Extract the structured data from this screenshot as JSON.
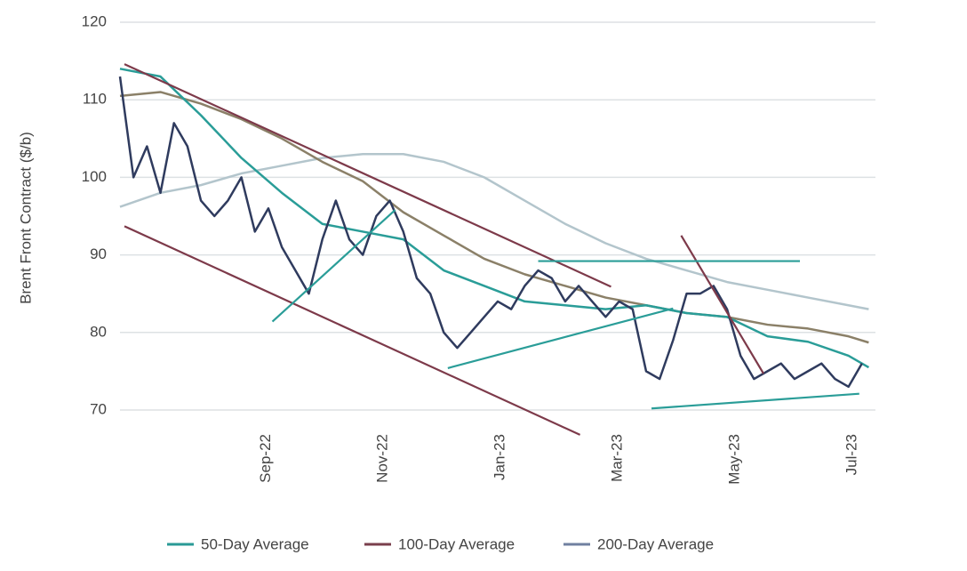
{
  "chart_data": {
    "type": "line",
    "y_label": "Brent Front Contract ($/b)",
    "ylim": [
      66.5,
      120
    ],
    "yticks": [
      70,
      80,
      90,
      100,
      110,
      120
    ],
    "xlim": [
      0,
      56
    ],
    "xticks": [
      {
        "value": 10.83,
        "label": "Sep-22"
      },
      {
        "value": 19.5,
        "label": "Nov-22"
      },
      {
        "value": 28.2,
        "label": "Jan-23"
      },
      {
        "value": 36.9,
        "label": "Mar-23"
      },
      {
        "value": 45.6,
        "label": "May-23"
      },
      {
        "value": 54.3,
        "label": "Jul-23"
      }
    ],
    "grid": true,
    "price": {
      "color": "#2f3b5e",
      "x": [
        0,
        1,
        2,
        3,
        4,
        5,
        6,
        7,
        8,
        9,
        10,
        11,
        12,
        13,
        14,
        15,
        16,
        17,
        18,
        19,
        20,
        21,
        22,
        23,
        24,
        25,
        26,
        27,
        28,
        29,
        30,
        31,
        32,
        33,
        34,
        35,
        36,
        37,
        38,
        39,
        40,
        41,
        42,
        43,
        44,
        45,
        46,
        47,
        48,
        49,
        50,
        51,
        52,
        53,
        54,
        55
      ],
      "values": [
        113,
        100,
        104,
        98,
        107,
        104,
        97,
        95,
        97,
        100,
        93,
        96,
        91,
        88,
        85,
        92,
        97,
        92,
        90,
        95,
        97,
        93,
        87,
        85,
        80,
        78,
        80,
        82,
        84,
        83,
        86,
        88,
        87,
        84,
        86,
        84,
        82,
        84,
        83,
        75,
        74,
        79,
        85,
        85,
        86,
        83,
        77,
        74,
        75,
        76,
        74,
        75,
        76,
        74,
        73,
        76
      ]
    },
    "series": [
      {
        "color": "#2a9d98",
        "x": [
          0,
          3,
          6,
          9,
          12,
          15,
          18,
          21,
          24,
          27,
          30,
          33,
          36,
          39,
          42,
          45,
          48,
          51,
          54,
          55.5
        ],
        "values": [
          114,
          113,
          108,
          102.5,
          98,
          94,
          93,
          92,
          88,
          86,
          84,
          83.5,
          83,
          83.5,
          82.5,
          82,
          79.5,
          78.8,
          77,
          75.5
        ]
      },
      {
        "color": "#8b8068",
        "x": [
          0,
          3,
          6,
          9,
          12,
          15,
          18,
          21,
          24,
          27,
          30,
          33,
          36,
          39,
          42,
          45,
          48,
          51,
          54,
          55.5
        ],
        "values": [
          110.5,
          111,
          109.5,
          107.5,
          105,
          102,
          99.5,
          95.5,
          92.5,
          89.5,
          87.5,
          86,
          84.5,
          83.5,
          82.5,
          82,
          81,
          80.5,
          79.5,
          78.7
        ]
      },
      {
        "color": "#b3c5cc",
        "x": [
          0,
          3,
          6,
          9,
          12,
          15,
          18,
          21,
          24,
          27,
          30,
          33,
          36,
          39,
          42,
          45,
          48,
          51,
          54,
          55.5
        ],
        "values": [
          96.2,
          98,
          99,
          100.5,
          101.5,
          102.5,
          103,
          103,
          102,
          100,
          97,
          94,
          91.5,
          89.5,
          88,
          86.5,
          85.5,
          84.5,
          83.5,
          83
        ]
      }
    ],
    "trendlines": [
      {
        "color": "#7d3a4a",
        "x": [
          0.33,
          36.4
        ],
        "y": [
          114.6,
          85.9
        ]
      },
      {
        "color": "#7d3a4a",
        "x": [
          0.33,
          34.1
        ],
        "y": [
          93.7,
          66.8
        ]
      },
      {
        "color": "#7d3a4a",
        "x": [
          41.6,
          47.7
        ],
        "y": [
          92.5,
          74.7
        ]
      },
      {
        "color": "#2a9d98",
        "x": [
          11.3,
          20.4
        ],
        "y": [
          81.4,
          95.8
        ]
      },
      {
        "color": "#2a9d98",
        "x": [
          24.3,
          41.0
        ],
        "y": [
          75.4,
          83.1
        ]
      },
      {
        "color": "#2a9d98",
        "x": [
          31.0,
          50.4
        ],
        "y": [
          89.2,
          89.2
        ]
      },
      {
        "color": "#2a9d98",
        "x": [
          39.4,
          54.8
        ],
        "y": [
          70.2,
          72.1
        ]
      }
    ],
    "legend": [
      {
        "name": "50-Day Average",
        "color": "#2a9a96"
      },
      {
        "name": "100-Day Average",
        "color": "#7a3f4c"
      },
      {
        "name": "200-Day Average",
        "color": "#7080a0"
      }
    ]
  }
}
